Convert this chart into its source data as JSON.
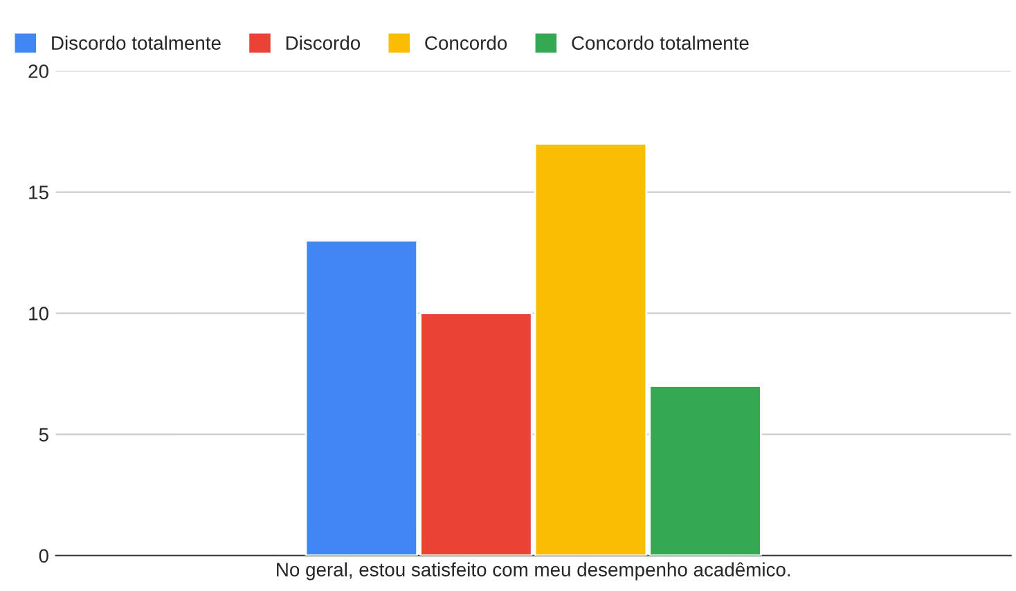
{
  "chart_data": {
    "type": "bar",
    "categories": [
      "No geral, estou satisfeito com meu desempenho acadêmico."
    ],
    "series": [
      {
        "name": "Discordo totalmente",
        "color": "#4285f4",
        "values": [
          13
        ]
      },
      {
        "name": "Discordo",
        "color": "#ea4335",
        "values": [
          10
        ]
      },
      {
        "name": "Concordo",
        "color": "#fbbc04",
        "values": [
          17
        ]
      },
      {
        "name": "Concordo totalmente",
        "color": "#34a853",
        "values": [
          7
        ]
      }
    ],
    "ylim": [
      0,
      20
    ],
    "yticks": [
      0,
      5,
      10,
      15,
      20
    ],
    "grid": "y",
    "legend": "top left"
  }
}
